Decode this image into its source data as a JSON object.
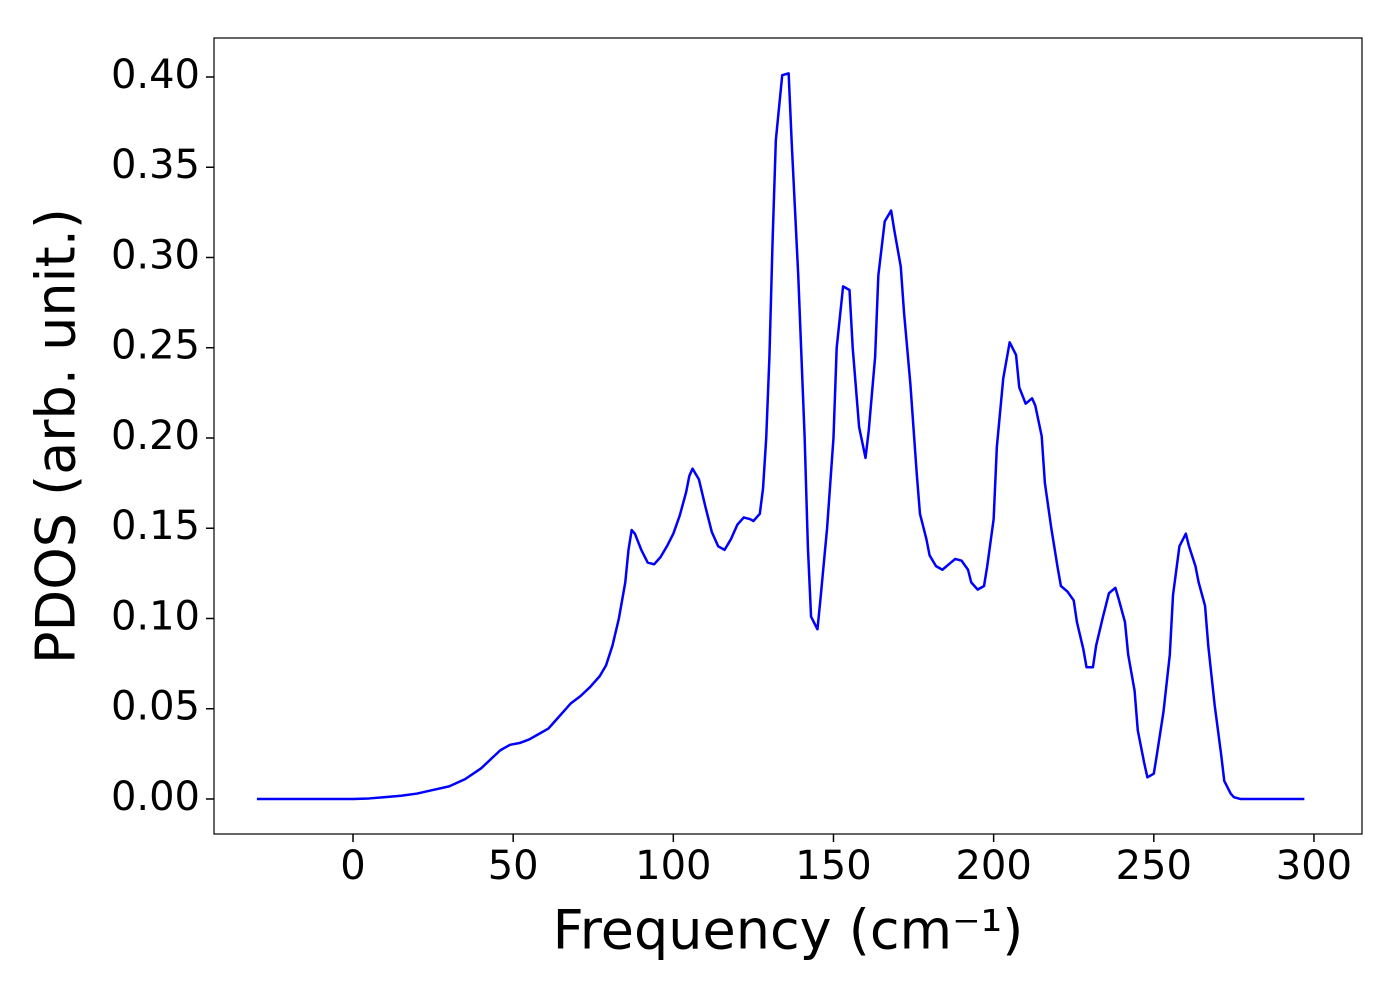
{
  "chart_data": {
    "type": "line",
    "xlabel": "Frequency (cm⁻¹)",
    "ylabel": "PDOS (arb. unit.)",
    "color": "#0000ff",
    "xlim": [
      -43.4,
      315.0
    ],
    "ylim": [
      -0.0194,
      0.4216
    ],
    "xticks": [
      0,
      50,
      100,
      150,
      200,
      250,
      300
    ],
    "yticks": [
      {
        "value": 0,
        "label": "0.00"
      },
      {
        "value": 0.05,
        "label": "0.05"
      },
      {
        "value": 0.1,
        "label": "0.10"
      },
      {
        "value": 0.15,
        "label": "0.15"
      },
      {
        "value": 0.2,
        "label": "0.20"
      },
      {
        "value": 0.25,
        "label": "0.25"
      },
      {
        "value": 0.3,
        "label": "0.30"
      },
      {
        "value": 0.35,
        "label": "0.35"
      },
      {
        "value": 0.4,
        "label": "0.40"
      }
    ],
    "x": [
      -30,
      -20,
      -10,
      0,
      5,
      10,
      15,
      20,
      25,
      30,
      35,
      40,
      43,
      46,
      49,
      52,
      55,
      58,
      61,
      63,
      66,
      68,
      71,
      74,
      77,
      79,
      81,
      83,
      85,
      86,
      87,
      88,
      90,
      92,
      94,
      96,
      98,
      100,
      102,
      104,
      105,
      106,
      108,
      110,
      112,
      114,
      116,
      118,
      120,
      122,
      124,
      125,
      127,
      128,
      129,
      130,
      131,
      132,
      134,
      136,
      137,
      139,
      141,
      142,
      143,
      145,
      146,
      148,
      150,
      151,
      153,
      155,
      156,
      158,
      160,
      161,
      163,
      164,
      166,
      168,
      169,
      171,
      172,
      174,
      176,
      177,
      179,
      180,
      182,
      184,
      186,
      188,
      190,
      192,
      193,
      195,
      197,
      198,
      200,
      201,
      203,
      205,
      207,
      208,
      210,
      212,
      213,
      215,
      216,
      218,
      220,
      221,
      223,
      225,
      226,
      228,
      229,
      231,
      232,
      234,
      236,
      238,
      239,
      241,
      242,
      244,
      245,
      247,
      248,
      250,
      251,
      253,
      255,
      256,
      258,
      260,
      261,
      263,
      264,
      266,
      267,
      269,
      271,
      272,
      274,
      275,
      277,
      285,
      297
    ],
    "values": [
      0,
      0,
      0,
      0,
      0.0003,
      0.001,
      0.0018,
      0.003,
      0.005,
      0.007,
      0.011,
      0.017,
      0.022,
      0.027,
      0.03,
      0.031,
      0.033,
      0.036,
      0.039,
      0.043,
      0.049,
      0.053,
      0.057,
      0.062,
      0.068,
      0.074,
      0.085,
      0.1,
      0.12,
      0.138,
      0.149,
      0.147,
      0.138,
      0.131,
      0.13,
      0.134,
      0.14,
      0.147,
      0.157,
      0.17,
      0.179,
      0.183,
      0.177,
      0.162,
      0.148,
      0.14,
      0.138,
      0.144,
      0.152,
      0.156,
      0.155,
      0.154,
      0.158,
      0.172,
      0.2,
      0.245,
      0.31,
      0.365,
      0.401,
      0.402,
      0.362,
      0.29,
      0.2,
      0.14,
      0.101,
      0.094,
      0.112,
      0.15,
      0.2,
      0.25,
      0.284,
      0.282,
      0.25,
      0.206,
      0.189,
      0.204,
      0.245,
      0.29,
      0.32,
      0.326,
      0.315,
      0.295,
      0.27,
      0.23,
      0.18,
      0.158,
      0.144,
      0.135,
      0.129,
      0.127,
      0.13,
      0.133,
      0.132,
      0.127,
      0.12,
      0.116,
      0.118,
      0.129,
      0.155,
      0.195,
      0.233,
      0.253,
      0.246,
      0.228,
      0.219,
      0.222,
      0.218,
      0.201,
      0.175,
      0.15,
      0.128,
      0.118,
      0.115,
      0.11,
      0.098,
      0.083,
      0.073,
      0.073,
      0.085,
      0.1,
      0.114,
      0.117,
      0.111,
      0.098,
      0.08,
      0.06,
      0.038,
      0.02,
      0.012,
      0.014,
      0.025,
      0.048,
      0.08,
      0.113,
      0.14,
      0.147,
      0.14,
      0.129,
      0.12,
      0.107,
      0.085,
      0.052,
      0.025,
      0.01,
      0.003,
      0.001,
      0,
      0,
      0
    ]
  }
}
